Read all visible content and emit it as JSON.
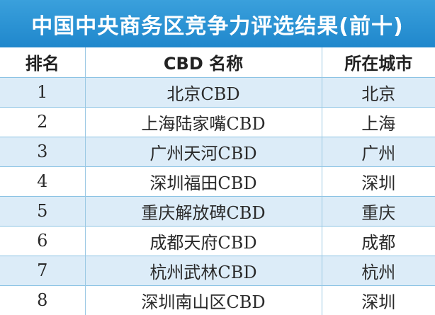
{
  "title": "中国中央商务区竞争力评选结果(前十)",
  "columns": [
    "排名",
    "CBD 名称",
    "所在城市"
  ],
  "rows": [
    {
      "rank": "1",
      "name": "北京CBD",
      "city": "北京"
    },
    {
      "rank": "2",
      "name": "上海陆家嘴CBD",
      "city": "上海"
    },
    {
      "rank": "3",
      "name": "广州天河CBD",
      "city": "广州"
    },
    {
      "rank": "4",
      "name": "深圳福田CBD",
      "city": "深圳"
    },
    {
      "rank": "5",
      "name": "重庆解放碑CBD",
      "city": "重庆"
    },
    {
      "rank": "6",
      "name": "成都天府CBD",
      "city": "成都"
    },
    {
      "rank": "7",
      "name": "杭州武林CBD",
      "city": "杭州"
    },
    {
      "rank": "8",
      "name": "深圳南山区CBD",
      "city": "深圳"
    }
  ],
  "colors": {
    "title_bg": "#1f87cc",
    "row_stripe": "#dcecf8",
    "grid_line": "#8cc3e4"
  }
}
